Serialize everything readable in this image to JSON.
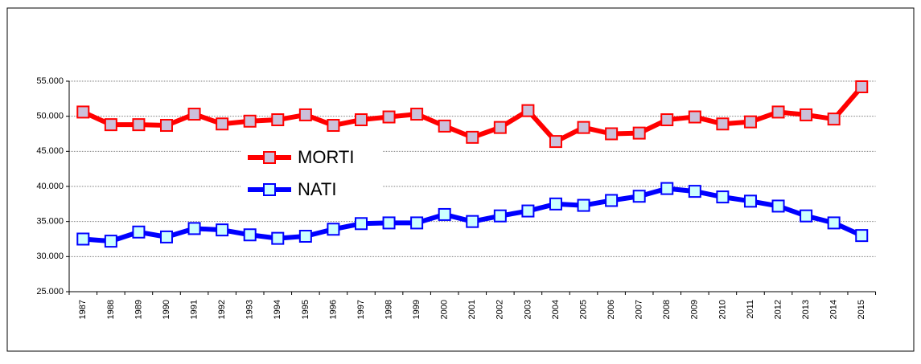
{
  "chart_data": {
    "type": "line",
    "categories": [
      "1987",
      "1988",
      "1989",
      "1990",
      "1991",
      "1992",
      "1993",
      "1994",
      "1995",
      "1996",
      "1997",
      "1998",
      "1999",
      "2000",
      "2001",
      "2002",
      "2003",
      "2004",
      "2005",
      "2006",
      "2007",
      "2008",
      "2009",
      "2010",
      "2011",
      "2012",
      "2013",
      "2014",
      "2015"
    ],
    "series": [
      {
        "name": "MORTI",
        "color": "#ff0000",
        "marker_color": "#ccc0da",
        "values": [
          50600,
          48800,
          48800,
          48700,
          50300,
          48900,
          49300,
          49500,
          50200,
          48700,
          49500,
          49900,
          50300,
          48600,
          47000,
          48400,
          50800,
          46400,
          48400,
          47500,
          47600,
          49500,
          49900,
          48900,
          49200,
          50600,
          50200,
          49600,
          54200
        ]
      },
      {
        "name": "NATI",
        "color": "#0000ff",
        "marker_color": "#ccffff",
        "values": [
          32500,
          32200,
          33500,
          32800,
          34000,
          33800,
          33100,
          32600,
          32900,
          33900,
          34700,
          34800,
          34800,
          36000,
          35000,
          35800,
          36500,
          37500,
          37300,
          38000,
          38600,
          39700,
          39300,
          38500,
          37900,
          37200,
          35800,
          34800,
          33000
        ]
      }
    ],
    "ylim": [
      25000,
      55000
    ],
    "yticks": [
      {
        "value": 25000,
        "label": "25.000"
      },
      {
        "value": 30000,
        "label": "30.000"
      },
      {
        "value": 35000,
        "label": "35.000"
      },
      {
        "value": 40000,
        "label": "40.000"
      },
      {
        "value": 45000,
        "label": "45.000"
      },
      {
        "value": 50000,
        "label": "50.000"
      },
      {
        "value": 55000,
        "label": "55.000"
      }
    ],
    "grid": true
  }
}
